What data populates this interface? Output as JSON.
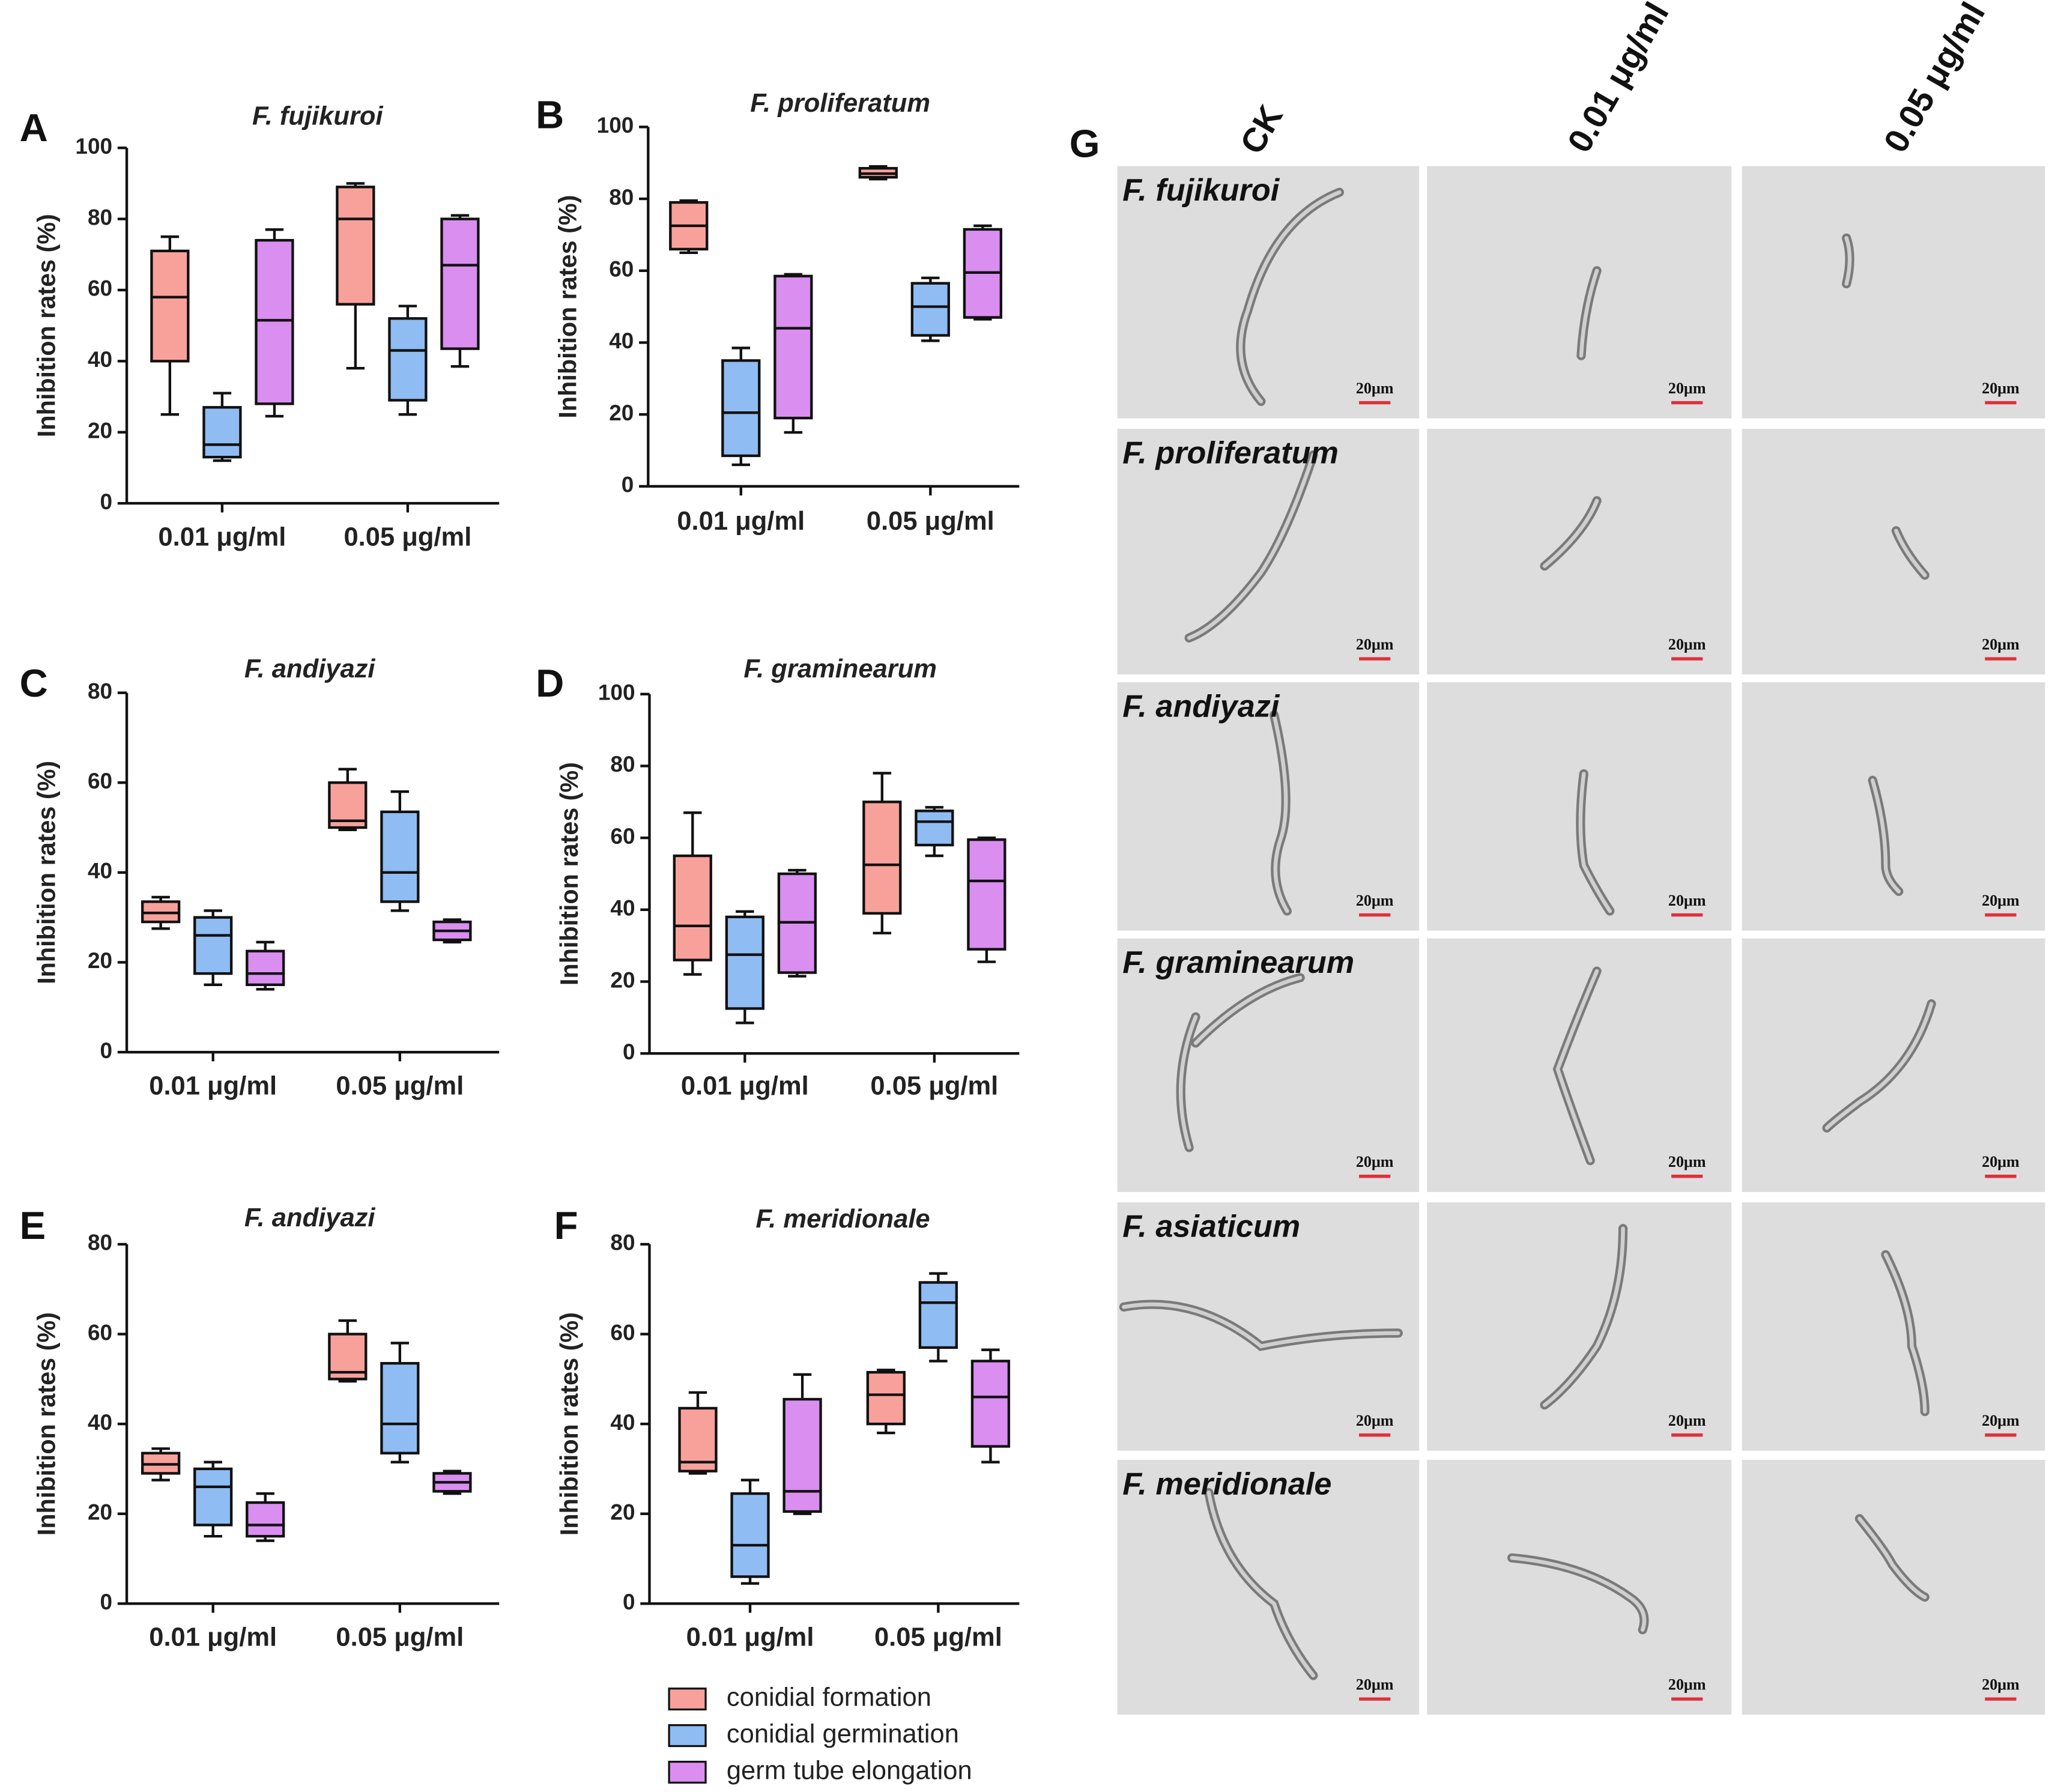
{
  "chart_data": [
    {
      "type": "box",
      "panel": "A",
      "title": "F. fujikuroi",
      "ylabel": "Inhibition rates (%)",
      "categories": [
        "0.01 μg/ml",
        "0.05 μg/ml"
      ],
      "ylim": [
        0,
        100
      ],
      "yticks": [
        0,
        20,
        40,
        60,
        80,
        100
      ],
      "series": [
        {
          "values": [
            {
              "min": 25,
              "q1": 40,
              "median": 58,
              "q3": 71,
              "max": 75
            },
            {
              "min": 38,
              "q1": 56,
              "median": 80,
              "q3": 89,
              "max": 90
            }
          ]
        },
        {
          "values": [
            {
              "min": 12,
              "q1": 13,
              "median": 16.5,
              "q3": 27,
              "max": 31
            },
            {
              "min": 25,
              "q1": 29,
              "median": 43,
              "q3": 52,
              "max": 55.5
            }
          ]
        },
        {
          "values": [
            {
              "min": 24.5,
              "q1": 28,
              "median": 51.5,
              "q3": 74,
              "max": 77
            },
            {
              "min": 38.5,
              "q1": 43.5,
              "median": 67,
              "q3": 80,
              "max": 81
            }
          ]
        }
      ]
    },
    {
      "type": "box",
      "panel": "B",
      "title": "F. proliferatum",
      "ylabel": "Inhibition rates (%)",
      "categories": [
        "0.01 μg/ml",
        "0.05 μg/ml"
      ],
      "ylim": [
        0,
        100
      ],
      "yticks": [
        0,
        20,
        40,
        60,
        80,
        100
      ],
      "series": [
        {
          "values": [
            {
              "min": 65,
              "q1": 66,
              "median": 72.5,
              "q3": 79,
              "max": 79.5
            },
            {
              "min": 85.5,
              "q1": 86,
              "median": 87,
              "q3": 88.5,
              "max": 89
            }
          ]
        },
        {
          "values": [
            {
              "min": 6,
              "q1": 8.5,
              "median": 20.5,
              "q3": 35,
              "max": 38.5
            },
            {
              "min": 40.5,
              "q1": 42,
              "median": 50,
              "q3": 56.5,
              "max": 58
            }
          ]
        },
        {
          "values": [
            {
              "min": 15,
              "q1": 19,
              "median": 44,
              "q3": 58.5,
              "max": 59
            },
            {
              "min": 46.5,
              "q1": 47,
              "median": 59.5,
              "q3": 71.5,
              "max": 72.5
            }
          ]
        }
      ]
    },
    {
      "type": "box",
      "panel": "C",
      "title": "F. andiyazi",
      "ylabel": "Inhibition rates (%)",
      "categories": [
        "0.01 μg/ml",
        "0.05 μg/ml"
      ],
      "ylim": [
        0,
        80
      ],
      "yticks": [
        0,
        20,
        40,
        60,
        80
      ],
      "series": [
        {
          "values": [
            {
              "min": 27.5,
              "q1": 29,
              "median": 31,
              "q3": 33.5,
              "max": 34.5
            },
            {
              "min": 49.5,
              "q1": 50,
              "median": 51.5,
              "q3": 60,
              "max": 63
            }
          ]
        },
        {
          "values": [
            {
              "min": 15,
              "q1": 17.5,
              "median": 26,
              "q3": 30,
              "max": 31.5
            },
            {
              "min": 31.5,
              "q1": 33.5,
              "median": 40,
              "q3": 53.5,
              "max": 58
            }
          ]
        },
        {
          "values": [
            {
              "min": 14,
              "q1": 15,
              "median": 17.5,
              "q3": 22.5,
              "max": 24.5
            },
            {
              "min": 24.5,
              "q1": 25,
              "median": 27,
              "q3": 29,
              "max": 29.5
            }
          ]
        }
      ]
    },
    {
      "type": "box",
      "panel": "D",
      "title": "F. graminearum",
      "ylabel": "Inhibition rates (%)",
      "categories": [
        "0.01 μg/ml",
        "0.05 μg/ml"
      ],
      "ylim": [
        0,
        100
      ],
      "yticks": [
        0,
        20,
        40,
        60,
        80,
        100
      ],
      "series": [
        {
          "values": [
            {
              "min": 22,
              "q1": 26,
              "median": 35.5,
              "q3": 55,
              "max": 67
            },
            {
              "min": 33.5,
              "q1": 39,
              "median": 52.5,
              "q3": 70,
              "max": 78
            }
          ]
        },
        {
          "values": [
            {
              "min": 8.5,
              "q1": 12.5,
              "median": 27.5,
              "q3": 38,
              "max": 39.5
            },
            {
              "min": 55,
              "q1": 58,
              "median": 64.5,
              "q3": 67.5,
              "max": 68.5
            }
          ]
        },
        {
          "values": [
            {
              "min": 21.5,
              "q1": 22.5,
              "median": 36.5,
              "q3": 50,
              "max": 51
            },
            {
              "min": 25.5,
              "q1": 29,
              "median": 48,
              "q3": 59.5,
              "max": 60
            }
          ]
        }
      ]
    },
    {
      "type": "box",
      "panel": "E",
      "title": "F. andiyazi",
      "ylabel": "Inhibition rates (%)",
      "categories": [
        "0.01 μg/ml",
        "0.05 μg/ml"
      ],
      "ylim": [
        0,
        80
      ],
      "yticks": [
        0,
        20,
        40,
        60,
        80
      ],
      "series": [
        {
          "values": [
            {
              "min": 27.5,
              "q1": 29,
              "median": 31,
              "q3": 33.5,
              "max": 34.5
            },
            {
              "min": 49.5,
              "q1": 50,
              "median": 51.5,
              "q3": 60,
              "max": 63
            }
          ]
        },
        {
          "values": [
            {
              "min": 15,
              "q1": 17.5,
              "median": 26,
              "q3": 30,
              "max": 31.5
            },
            {
              "min": 31.5,
              "q1": 33.5,
              "median": 40,
              "q3": 53.5,
              "max": 58
            }
          ]
        },
        {
          "values": [
            {
              "min": 14,
              "q1": 15,
              "median": 17.5,
              "q3": 22.5,
              "max": 24.5
            },
            {
              "min": 24.5,
              "q1": 25,
              "median": 27,
              "q3": 29,
              "max": 29.5
            }
          ]
        }
      ]
    },
    {
      "type": "box",
      "panel": "F",
      "title": "F. meridionale",
      "ylabel": "Inhibition rates (%)",
      "categories": [
        "0.01 μg/ml",
        "0.05 μg/ml"
      ],
      "ylim": [
        0,
        80
      ],
      "yticks": [
        0,
        20,
        40,
        60,
        80
      ],
      "series": [
        {
          "values": [
            {
              "min": 29,
              "q1": 29.5,
              "median": 31.5,
              "q3": 43.5,
              "max": 47
            },
            {
              "min": 38,
              "q1": 40,
              "median": 46.5,
              "q3": 51.5,
              "max": 52
            }
          ]
        },
        {
          "values": [
            {
              "min": 4.5,
              "q1": 6,
              "median": 13,
              "q3": 24.5,
              "max": 27.5
            },
            {
              "min": 54,
              "q1": 57,
              "median": 67,
              "q3": 71.5,
              "max": 73.5
            }
          ]
        },
        {
          "values": [
            {
              "min": 20,
              "q1": 20.5,
              "median": 25,
              "q3": 45.5,
              "max": 51
            },
            {
              "min": 31.5,
              "q1": 35,
              "median": 46,
              "q3": 54,
              "max": 56.5
            }
          ]
        }
      ]
    }
  ],
  "legend": [
    {
      "name": "conidial formation",
      "color": "#f8a19b"
    },
    {
      "name": "conidial germination",
      "color": "#8fbcf3"
    },
    {
      "name": "germ tube elongation",
      "color": "#d98ef0"
    }
  ],
  "micrographs": {
    "panel": "G",
    "columns": [
      "CK",
      "0.01 μg/ml",
      "0.05 μg/ml"
    ],
    "rows": [
      "F. fujikuroi",
      "F. proliferatum",
      "F. andiyazi",
      "F. graminearum",
      "F. asiaticum",
      "F. meridionale"
    ],
    "scale_bar": "20μm"
  }
}
